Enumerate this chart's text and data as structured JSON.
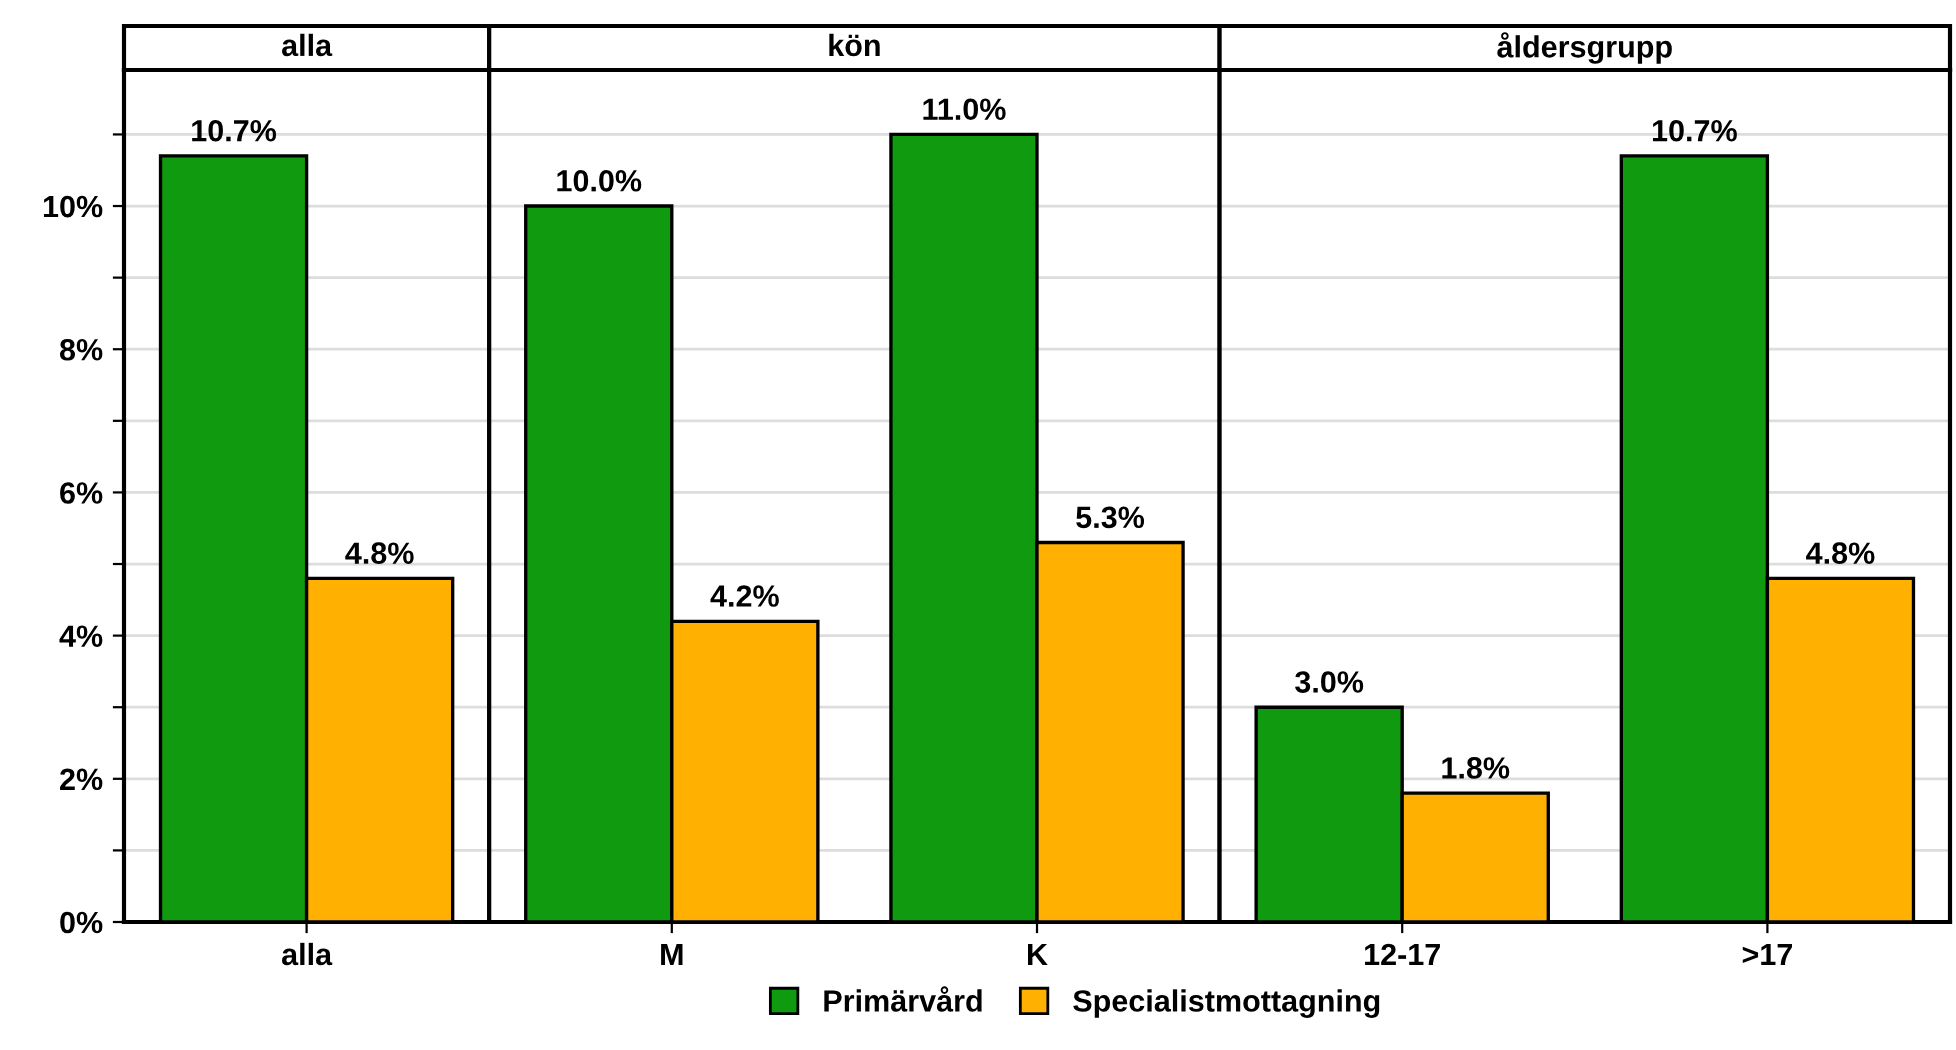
{
  "chart_data": [
    {
      "type": "bar",
      "title": "alla",
      "categories": [
        "alla"
      ],
      "ylim": [
        0,
        11.9
      ],
      "yticks": [
        {
          "value": 0,
          "label": "0%"
        },
        {
          "value": 1,
          "label": null
        },
        {
          "value": 2,
          "label": "2%"
        },
        {
          "value": 3,
          "label": null
        },
        {
          "value": 4,
          "label": "4%"
        },
        {
          "value": 5,
          "label": null
        },
        {
          "value": 6,
          "label": "6%"
        },
        {
          "value": 7,
          "label": null
        },
        {
          "value": 8,
          "label": "8%"
        },
        {
          "value": 9,
          "label": null
        },
        {
          "value": 10,
          "label": "10%"
        },
        {
          "value": 11,
          "label": null
        }
      ],
      "grid": "y",
      "legend": "bottom",
      "series": [
        {
          "name": "Primärvård",
          "color": "#0f9a0f",
          "values": [
            10.7
          ],
          "value_labels": [
            "10.7%"
          ]
        },
        {
          "name": "Specialistmottagning",
          "color": "#ffb000",
          "values": [
            4.8
          ],
          "value_labels": [
            "4.8%"
          ]
        }
      ]
    },
    {
      "type": "bar",
      "title": "kön",
      "categories": [
        "M",
        "K"
      ],
      "ylim": [
        0,
        11.9
      ],
      "yticks": [
        {
          "value": 0,
          "label": null
        },
        {
          "value": 1,
          "label": null
        },
        {
          "value": 2,
          "label": null
        },
        {
          "value": 3,
          "label": null
        },
        {
          "value": 4,
          "label": null
        },
        {
          "value": 5,
          "label": null
        },
        {
          "value": 6,
          "label": null
        },
        {
          "value": 7,
          "label": null
        },
        {
          "value": 8,
          "label": null
        },
        {
          "value": 9,
          "label": null
        },
        {
          "value": 10,
          "label": null
        },
        {
          "value": 11,
          "label": null
        }
      ],
      "grid": "y",
      "tick_labels": "x",
      "series": [
        {
          "color": "#0f9a0f",
          "values": [
            10.0,
            11.0
          ],
          "value_labels": [
            "10.0%",
            "11.0%"
          ]
        },
        {
          "color": "#ffb000",
          "values": [
            4.2,
            5.3
          ],
          "value_labels": [
            "4.2%",
            "5.3%"
          ]
        }
      ]
    },
    {
      "type": "bar",
      "title": "åldersgrupp",
      "categories": [
        "12-17",
        ">17"
      ],
      "ylim": [
        0,
        11.9
      ],
      "yticks": [
        {
          "value": 0,
          "label": null
        },
        {
          "value": 1,
          "label": null
        },
        {
          "value": 2,
          "label": null
        },
        {
          "value": 3,
          "label": null
        },
        {
          "value": 4,
          "label": null
        },
        {
          "value": 5,
          "label": null
        },
        {
          "value": 6,
          "label": null
        },
        {
          "value": 7,
          "label": null
        },
        {
          "value": 8,
          "label": null
        },
        {
          "value": 9,
          "label": null
        },
        {
          "value": 10,
          "label": null
        },
        {
          "value": 11,
          "label": null
        }
      ],
      "grid": "y",
      "tick_labels": "x",
      "series": [
        {
          "color": "#0f9a0f",
          "values": [
            3.0,
            10.7
          ],
          "value_labels": [
            "3.0%",
            "10.7%"
          ]
        },
        {
          "color": "#ffb000",
          "values": [
            1.8,
            4.8
          ],
          "value_labels": [
            "1.8%",
            "4.8%"
          ]
        }
      ]
    }
  ]
}
